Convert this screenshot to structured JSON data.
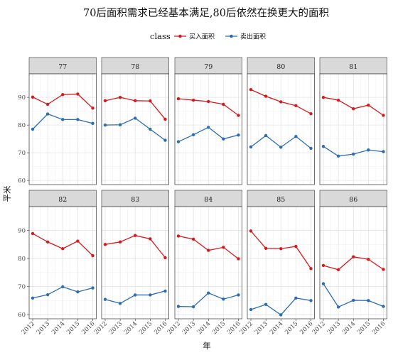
{
  "chart_data": {
    "type": "line",
    "title": "70后面积需求已经基本满足,80后依然在换更大的面积",
    "xlabel": "年",
    "ylabel": "平米",
    "legend": {
      "title": "class",
      "placement": "top",
      "entries": [
        "买入面积",
        "卖出面积"
      ]
    },
    "x": [
      "2012",
      "2013",
      "2014",
      "2015",
      "2016"
    ],
    "yticks": [
      60,
      70,
      80,
      90
    ],
    "ylim": [
      58.5,
      98.5
    ],
    "grid": true,
    "colors": {
      "buy": "#d7191c",
      "sell": "#2c6db2",
      "strip": "#d9d9d9"
    },
    "facets": [
      {
        "label": "77",
        "buy": [
          90.1,
          87.5,
          91.0,
          91.2,
          86.1
        ],
        "sell": [
          78.5,
          84.0,
          82.0,
          82.0,
          80.6
        ]
      },
      {
        "label": "78",
        "buy": [
          88.8,
          90.0,
          88.8,
          88.7,
          82.1
        ],
        "sell": [
          80.0,
          80.1,
          82.5,
          78.5,
          74.5
        ]
      },
      {
        "label": "79",
        "buy": [
          89.5,
          89.0,
          88.5,
          87.5,
          83.5
        ],
        "sell": [
          74.0,
          76.5,
          79.2,
          75.0,
          76.4
        ]
      },
      {
        "label": "80",
        "buy": [
          92.8,
          90.4,
          88.4,
          87.0,
          84.1
        ],
        "sell": [
          72.1,
          76.2,
          72.0,
          75.9,
          71.6
        ]
      },
      {
        "label": "81",
        "buy": [
          90.0,
          89.0,
          85.9,
          87.2,
          83.5
        ],
        "sell": [
          72.3,
          68.8,
          69.5,
          71.0,
          70.4
        ]
      },
      {
        "label": "82",
        "buy": [
          88.9,
          85.9,
          83.5,
          86.2,
          81.0
        ],
        "sell": [
          65.9,
          67.1,
          69.9,
          68.1,
          69.5
        ]
      },
      {
        "label": "83",
        "buy": [
          85.0,
          85.9,
          88.2,
          87.0,
          80.3
        ],
        "sell": [
          65.4,
          64.0,
          67.0,
          67.0,
          68.4
        ]
      },
      {
        "label": "84",
        "buy": [
          88.0,
          86.9,
          82.9,
          84.0,
          79.9
        ],
        "sell": [
          62.9,
          62.8,
          67.7,
          65.5,
          67.0
        ]
      },
      {
        "label": "85",
        "buy": [
          89.8,
          83.6,
          83.5,
          84.3,
          76.4
        ],
        "sell": [
          61.8,
          63.6,
          59.9,
          65.9,
          65.0
        ]
      },
      {
        "label": "86",
        "buy": [
          77.5,
          76.0,
          80.6,
          79.7,
          76.1
        ],
        "sell": [
          71.0,
          62.7,
          65.1,
          65.0,
          62.9
        ]
      }
    ]
  }
}
